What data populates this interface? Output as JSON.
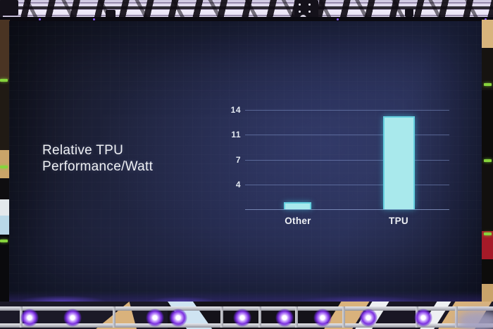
{
  "slide": {
    "title_lines": [
      "Relative TPU",
      "Performance/Watt"
    ],
    "title_full": "Relative TPU Performance/Watt"
  },
  "chart_data": {
    "type": "bar",
    "title": "Relative TPU Performance/Watt",
    "categories": [
      "Other",
      "TPU"
    ],
    "values": [
      1,
      13
    ],
    "xlabel": "",
    "ylabel": "",
    "ylim": [
      0,
      14
    ],
    "ytick_labels": [
      "14",
      "11",
      "7",
      "4"
    ],
    "ytick_values": [
      14,
      10.5,
      7,
      3.5
    ],
    "grid": true,
    "legend": false,
    "bar_color": "#a9e9ec",
    "grid_color": "#8094c8",
    "text_color": "#eef0f4",
    "background_color": "#232848"
  }
}
